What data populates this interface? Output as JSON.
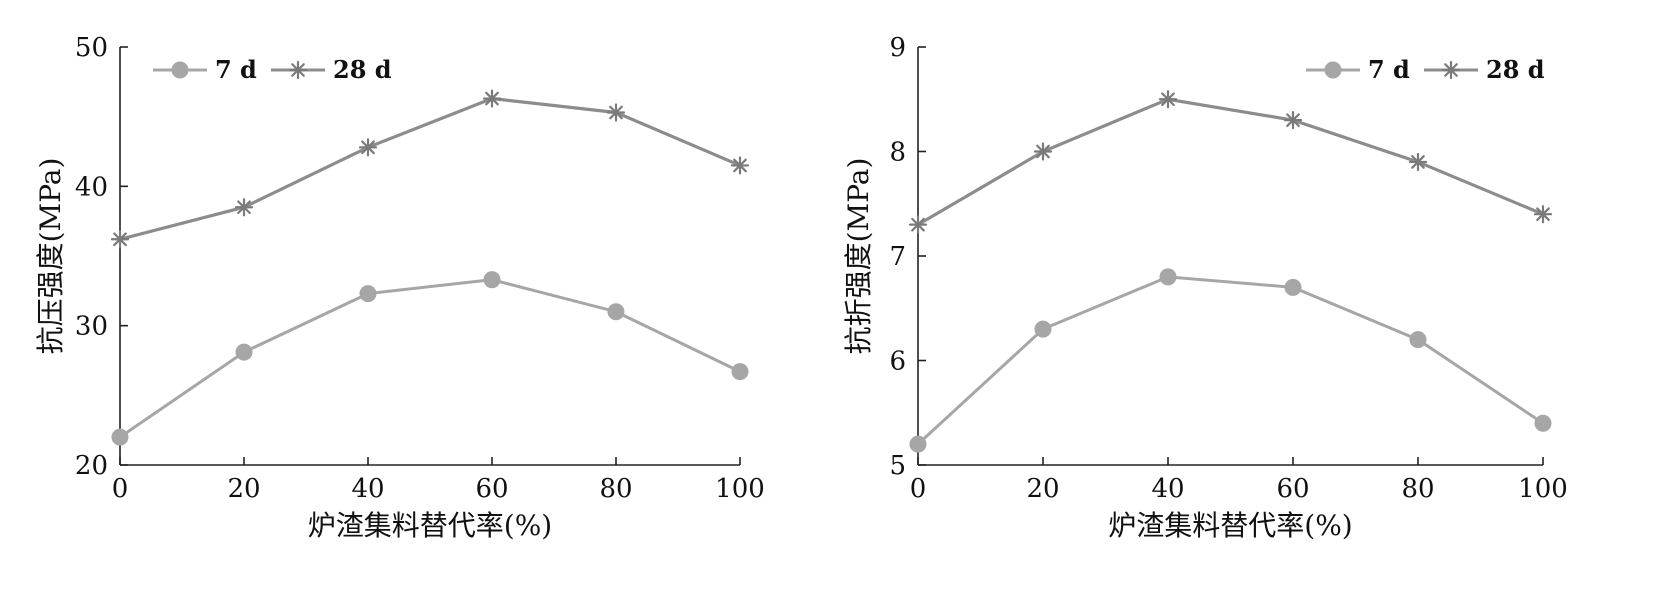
{
  "colors": {
    "series_7d": "#a6a6a6",
    "series_28d": "#8c8c8c",
    "axis": "#222222"
  },
  "chart_data": [
    {
      "type": "line",
      "xlabel": "炉渣集料替代率(%)",
      "ylabel": "抗压强度(MPa)",
      "x": [
        0,
        20,
        40,
        60,
        80,
        100
      ],
      "x_ticks": [
        "0",
        "20",
        "40",
        "60",
        "80",
        "100"
      ],
      "y_ticks": [
        "20",
        "30",
        "40",
        "50"
      ],
      "xlim": [
        0,
        100
      ],
      "ylim": [
        20,
        50
      ],
      "legend_position": "top-left",
      "series": [
        {
          "name": "7 d",
          "marker": "circle",
          "values": [
            22.0,
            28.1,
            32.3,
            33.3,
            31.0,
            26.7
          ]
        },
        {
          "name": "28 d",
          "marker": "asterisk",
          "values": [
            36.2,
            38.5,
            42.8,
            46.3,
            45.3,
            41.5
          ]
        }
      ]
    },
    {
      "type": "line",
      "xlabel": "炉渣集料替代率(%)",
      "ylabel": "抗折强度(MPa)",
      "x": [
        0,
        20,
        40,
        60,
        80,
        100
      ],
      "x_ticks": [
        "0",
        "20",
        "40",
        "60",
        "80",
        "100"
      ],
      "y_ticks": [
        "5",
        "6",
        "7",
        "8",
        "9"
      ],
      "xlim": [
        0,
        100
      ],
      "ylim": [
        5,
        9
      ],
      "legend_position": "top-right",
      "series": [
        {
          "name": "7 d",
          "marker": "circle",
          "values": [
            5.2,
            6.3,
            6.8,
            6.7,
            6.2,
            5.4
          ]
        },
        {
          "name": "28 d",
          "marker": "asterisk",
          "values": [
            7.3,
            8.0,
            8.5,
            8.3,
            7.9,
            7.4
          ]
        }
      ]
    }
  ]
}
